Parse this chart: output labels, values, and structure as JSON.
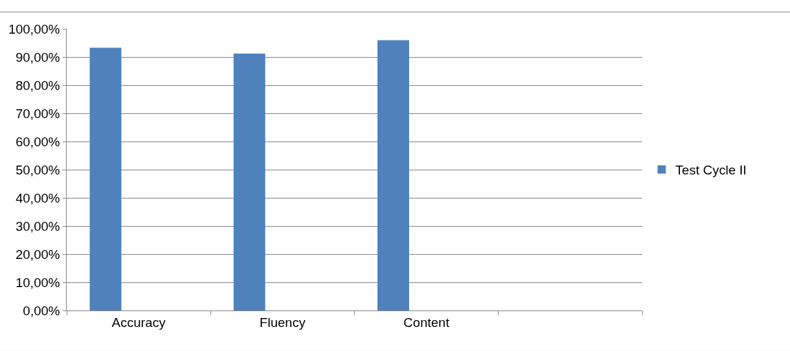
{
  "chart_data": {
    "type": "bar",
    "categories": [
      "Accuracy",
      "Fluency",
      "Content",
      null
    ],
    "series": [
      {
        "name": "Test Cycle II",
        "color": "#4f81bd",
        "values": [
          93.3,
          91.2,
          96.0,
          null
        ]
      }
    ],
    "ylim": [
      0,
      100
    ],
    "yticks": [
      {
        "value": 0,
        "label": "0,00%"
      },
      {
        "value": 10,
        "label": "10,00%"
      },
      {
        "value": 20,
        "label": "20,00%"
      },
      {
        "value": 30,
        "label": "30,00%"
      },
      {
        "value": 40,
        "label": "40,00%"
      },
      {
        "value": 50,
        "label": "50,00%"
      },
      {
        "value": 60,
        "label": "60,00%"
      },
      {
        "value": 70,
        "label": "70,00%"
      },
      {
        "value": 80,
        "label": "80,00%"
      },
      {
        "value": 90,
        "label": "90,00%"
      },
      {
        "value": 100,
        "label": "100,00%"
      }
    ],
    "grid": "y",
    "legend": "right"
  }
}
